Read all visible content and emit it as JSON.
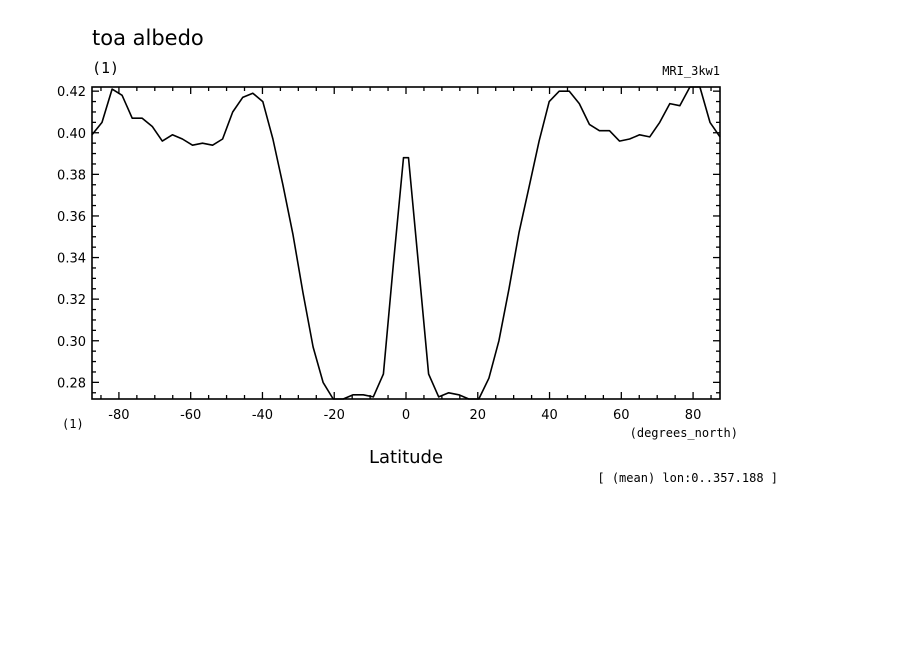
{
  "chart_data": {
    "type": "line",
    "title": "toa albedo",
    "ylabel_unit": "(1)",
    "x_unit_label": "(1)",
    "model_label": "MRI_3kw1",
    "xlabel": "Latitude",
    "xunits": "(degrees_north)",
    "footnote": "[ (mean) lon:0..357.188 ]",
    "xlim": [
      -87.5,
      87.5
    ],
    "ylim": [
      0.272,
      0.422
    ],
    "x_ticks": [
      -80,
      -60,
      -40,
      -20,
      0,
      20,
      40,
      60,
      80
    ],
    "x_tick_labels": [
      "-80",
      "-60",
      "-40",
      "-20",
      "0",
      "20",
      "40",
      "60",
      "80"
    ],
    "y_ticks": [
      0.28,
      0.3,
      0.32,
      0.34,
      0.36,
      0.38,
      0.4,
      0.42
    ],
    "y_tick_labels": [
      "0.28",
      "0.30",
      "0.32",
      "0.34",
      "0.36",
      "0.38",
      "0.40",
      "0.42"
    ],
    "series": [
      {
        "x": [
          -87.5,
          -84.7,
          -81.9,
          -79.1,
          -76.3,
          -73.5,
          -70.7,
          -67.9,
          -65.1,
          -62.3,
          -59.5,
          -56.7,
          -53.9,
          -51.1,
          -48.3,
          -45.5,
          -42.7,
          -39.9,
          -37.1,
          -34.3,
          -31.5,
          -28.7,
          -25.9,
          -23.1,
          -20.3,
          -17.5,
          -14.7,
          -11.9,
          -9.1,
          -6.3,
          -3.5,
          -0.7,
          0.7,
          3.5,
          6.3,
          9.1,
          11.9,
          14.7,
          17.5,
          20.3,
          23.1,
          25.9,
          28.7,
          31.5,
          34.3,
          37.1,
          39.9,
          42.7,
          45.5,
          48.3,
          51.1,
          53.9,
          56.7,
          59.5,
          62.3,
          65.1,
          67.9,
          70.7,
          73.5,
          76.3,
          79.1,
          81.9,
          84.7,
          87.5
        ],
        "values": [
          0.399,
          0.405,
          0.421,
          0.418,
          0.407,
          0.407,
          0.403,
          0.396,
          0.399,
          0.397,
          0.394,
          0.395,
          0.394,
          0.397,
          0.41,
          0.417,
          0.419,
          0.415,
          0.397,
          0.375,
          0.351,
          0.323,
          0.297,
          0.28,
          0.272,
          0.272,
          0.274,
          0.274,
          0.273,
          0.284,
          0.337,
          0.388,
          0.388,
          0.336,
          0.284,
          0.273,
          0.275,
          0.274,
          0.272,
          0.272,
          0.282,
          0.3,
          0.325,
          0.352,
          0.374,
          0.396,
          0.415,
          0.42,
          0.42,
          0.414,
          0.404,
          0.401,
          0.401,
          0.396,
          0.397,
          0.399,
          0.398,
          0.405,
          0.414,
          0.413,
          0.422,
          0.422,
          0.405,
          0.398
        ]
      }
    ]
  }
}
